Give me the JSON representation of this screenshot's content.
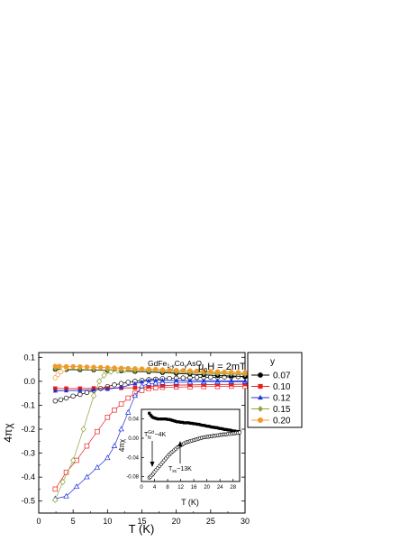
{
  "chart_data": [
    {
      "type": "line",
      "xlabel": "T (K)",
      "ylabel": "4πχ",
      "xlim": [
        0,
        30
      ],
      "ylim": [
        -0.55,
        0.12
      ],
      "xticks": [
        "0",
        "5",
        "10",
        "15",
        "20",
        "25",
        "30"
      ],
      "yticks": [
        "-0.5",
        "-0.4",
        "-0.3",
        "-0.2",
        "-0.1",
        "0.0",
        "0.1"
      ],
      "annotations": {
        "compound_base": "GdFe",
        "compound_sub1": "1-y",
        "compound_mid": "Co",
        "compound_sub2": "y",
        "compound_end": "AsO",
        "field_mu": "μ",
        "field_sub": "0",
        "field_rest": "H = 2mT"
      },
      "legend": {
        "title": "y",
        "placement": "right, outside plot",
        "entries": [
          "0.07",
          "0.10",
          "0.12",
          "0.15",
          "0.20"
        ]
      },
      "series": [
        {
          "name": "0.07",
          "color": "#000000",
          "marker": "circle",
          "fc_x": [
            2.4,
            4,
            6,
            8,
            10,
            12,
            14,
            16,
            18,
            20,
            22,
            24,
            26,
            28,
            30
          ],
          "fc_y": [
            0.05,
            0.049,
            0.048,
            0.047,
            0.045,
            0.043,
            0.041,
            0.039,
            0.036,
            0.033,
            0.03,
            0.027,
            0.024,
            0.022,
            0.02
          ],
          "zfc_x": [
            2.4,
            3.2,
            4,
            5,
            6,
            7,
            8,
            9,
            10,
            11,
            12,
            13,
            14,
            15,
            16,
            17,
            18,
            19,
            20,
            21,
            22,
            23,
            24,
            25,
            26,
            27,
            28,
            29,
            30
          ],
          "zfc_y": [
            -0.082,
            -0.077,
            -0.07,
            -0.062,
            -0.055,
            -0.047,
            -0.038,
            -0.03,
            -0.022,
            -0.015,
            -0.009,
            -0.004,
            0.0,
            0.004,
            0.007,
            0.009,
            0.011,
            0.012,
            0.013,
            0.014,
            0.015,
            0.016,
            0.016,
            0.017,
            0.017,
            0.018,
            0.018,
            0.019,
            0.019
          ]
        },
        {
          "name": "0.10",
          "color": "#e8201f",
          "marker": "square",
          "fc_x": [
            2.4,
            4,
            6,
            8,
            10,
            12,
            14,
            16,
            18,
            20,
            22,
            24,
            26,
            28,
            30
          ],
          "fc_y": [
            -0.03,
            -0.03,
            -0.03,
            -0.029,
            -0.029,
            -0.028,
            -0.027,
            -0.022,
            -0.018,
            -0.016,
            -0.015,
            -0.014,
            -0.013,
            -0.013,
            -0.012
          ],
          "zfc_x": [
            2.4,
            4,
            5.5,
            7,
            8.5,
            10,
            11,
            12,
            13,
            14,
            15,
            16,
            17,
            18,
            20,
            22,
            24,
            26,
            28,
            30
          ],
          "zfc_y": [
            -0.45,
            -0.38,
            -0.33,
            -0.27,
            -0.21,
            -0.15,
            -0.12,
            -0.095,
            -0.07,
            -0.05,
            -0.038,
            -0.03,
            -0.027,
            -0.025,
            -0.024,
            -0.023,
            -0.022,
            -0.022,
            -0.021,
            -0.021
          ]
        },
        {
          "name": "0.12",
          "color": "#1f2fd6",
          "marker": "triangle",
          "fc_x": [
            2.4,
            4,
            6,
            8,
            10,
            12,
            14,
            15,
            16,
            17,
            18,
            20,
            22,
            24,
            26,
            28,
            30
          ],
          "fc_y": [
            -0.04,
            -0.039,
            -0.038,
            -0.036,
            -0.033,
            -0.025,
            -0.01,
            -0.002,
            0.003,
            0.004,
            0.004,
            0.003,
            0.003,
            0.002,
            0.002,
            0.001,
            0.001
          ],
          "zfc_x": [
            2.4,
            4,
            5.5,
            7,
            8.5,
            10,
            11,
            12,
            13,
            14,
            15,
            16,
            17,
            18,
            20,
            22,
            24,
            26,
            28,
            30
          ],
          "zfc_y": [
            -0.49,
            -0.48,
            -0.44,
            -0.4,
            -0.36,
            -0.32,
            -0.27,
            -0.2,
            -0.13,
            -0.06,
            -0.02,
            -0.01,
            -0.008,
            -0.006,
            -0.005,
            -0.004,
            -0.003,
            -0.003,
            -0.002,
            -0.002
          ]
        },
        {
          "name": "0.15",
          "color": "#8da33a",
          "marker": "diamond",
          "fc_x": [
            2.4,
            4,
            6,
            8,
            10,
            12,
            14,
            16,
            18,
            20,
            22,
            24,
            26,
            28,
            30
          ],
          "fc_y": [
            0.052,
            0.051,
            0.05,
            0.048,
            0.047,
            0.045,
            0.043,
            0.041,
            0.039,
            0.037,
            0.035,
            0.033,
            0.031,
            0.03,
            0.028
          ],
          "zfc_x": [
            2.4,
            3.5,
            5,
            6.5,
            8,
            8.8,
            9.5,
            10.5,
            11.5,
            12.5,
            14,
            16,
            18,
            20,
            22,
            24,
            26,
            28,
            30
          ],
          "zfc_y": [
            -0.495,
            -0.42,
            -0.33,
            -0.2,
            -0.06,
            0.0,
            0.025,
            0.04,
            0.045,
            0.047,
            0.048,
            0.046,
            0.044,
            0.042,
            0.04,
            0.038,
            0.035,
            0.033,
            0.031
          ]
        },
        {
          "name": "0.20",
          "color": "#f19a2c",
          "marker": "circle-filled",
          "fc_x": [
            2.4,
            3,
            4,
            5,
            6,
            7,
            8,
            9,
            10,
            11,
            12,
            13,
            14,
            15,
            16,
            17,
            18,
            19,
            20,
            21,
            22,
            23,
            24,
            25,
            26,
            27,
            28,
            29,
            30
          ],
          "fc_y": [
            0.063,
            0.063,
            0.062,
            0.062,
            0.061,
            0.06,
            0.059,
            0.058,
            0.057,
            0.056,
            0.055,
            0.054,
            0.053,
            0.052,
            0.051,
            0.05,
            0.048,
            0.047,
            0.046,
            0.045,
            0.044,
            0.043,
            0.042,
            0.041,
            0.04,
            0.039,
            0.038,
            0.037,
            0.036
          ],
          "zfc_x": [
            2.4,
            2.8,
            3.2,
            3.6,
            4
          ],
          "zfc_y": [
            0.015,
            0.028,
            0.04,
            0.05,
            0.058
          ]
        }
      ]
    },
    {
      "type": "scatter",
      "xlabel": "T (K)",
      "ylabel": "4πχ",
      "xlim": [
        0,
        30
      ],
      "ylim": [
        -0.09,
        0.06
      ],
      "xticks": [
        "0",
        "4",
        "8",
        "12",
        "16",
        "20",
        "24",
        "28"
      ],
      "yticks": [
        "-0.08",
        "-0.04",
        "0.00",
        "0.04"
      ],
      "annotations": {
        "tn_base": "T",
        "tn_sup": "Gd",
        "tn_sub": "N",
        "tn_rest": "~4K",
        "tsc_base": "T",
        "tsc_sub": "sc",
        "tsc_rest": "~13K"
      },
      "series": [
        {
          "marker": "filled-square",
          "x": [
            2.4,
            2.8,
            3.2,
            3.6,
            4,
            4.5,
            5,
            5.5,
            6,
            6.5,
            7,
            7.5,
            8,
            8.5,
            9,
            9.5,
            10,
            10.5,
            11,
            11.5,
            12,
            12.5,
            13,
            13.5,
            14,
            14.5,
            15,
            15.5,
            16,
            16.5,
            17,
            17.5,
            18,
            18.5,
            19,
            19.5,
            20,
            20.5,
            21,
            21.5,
            22,
            22.5,
            23,
            23.5,
            24,
            24.5,
            25,
            25.5,
            26,
            26.5,
            27,
            27.5,
            28,
            28.5,
            29,
            29.5,
            30
          ],
          "y": [
            0.052,
            0.048,
            0.045,
            0.043,
            0.042,
            0.041,
            0.04,
            0.04,
            0.04,
            0.04,
            0.04,
            0.04,
            0.039,
            0.039,
            0.038,
            0.037,
            0.036,
            0.035,
            0.034,
            0.034,
            0.033,
            0.033,
            0.032,
            0.032,
            0.032,
            0.032,
            0.031,
            0.031,
            0.03,
            0.03,
            0.029,
            0.029,
            0.028,
            0.027,
            0.027,
            0.026,
            0.025,
            0.025,
            0.024,
            0.023,
            0.023,
            0.022,
            0.022,
            0.021,
            0.02,
            0.02,
            0.019,
            0.018,
            0.018,
            0.017,
            0.017,
            0.016,
            0.015,
            0.015,
            0.014,
            0.014,
            0.013
          ]
        },
        {
          "marker": "open-circle",
          "x": [
            2.4,
            2.8,
            3.2,
            3.6,
            4,
            4.5,
            5,
            5.5,
            6,
            6.5,
            7,
            7.5,
            8,
            8.5,
            9,
            9.5,
            10,
            10.5,
            11,
            11.5,
            12,
            12.5,
            13,
            13.5,
            14,
            14.5,
            15,
            15.5,
            16,
            16.5,
            17,
            17.5,
            18,
            18.5,
            19,
            19.5,
            20,
            20.5,
            21,
            21.5,
            22,
            22.5,
            23,
            23.5,
            24,
            24.5,
            25,
            25.5,
            26,
            26.5,
            27,
            27.5,
            28,
            28.5,
            29,
            29.5,
            30
          ],
          "y": [
            -0.082,
            -0.08,
            -0.077,
            -0.074,
            -0.07,
            -0.066,
            -0.062,
            -0.058,
            -0.054,
            -0.05,
            -0.046,
            -0.042,
            -0.038,
            -0.034,
            -0.031,
            -0.028,
            -0.025,
            -0.022,
            -0.019,
            -0.017,
            -0.015,
            -0.013,
            -0.011,
            -0.009,
            -0.008,
            -0.007,
            -0.006,
            -0.005,
            -0.004,
            -0.003,
            -0.002,
            -0.001,
            0.0,
            0.001,
            0.002,
            0.002,
            0.003,
            0.003,
            0.004,
            0.004,
            0.005,
            0.005,
            0.006,
            0.006,
            0.007,
            0.007,
            0.008,
            0.008,
            0.008,
            0.009,
            0.009,
            0.009,
            0.01,
            0.01,
            0.011,
            0.011,
            0.012
          ]
        }
      ]
    }
  ]
}
